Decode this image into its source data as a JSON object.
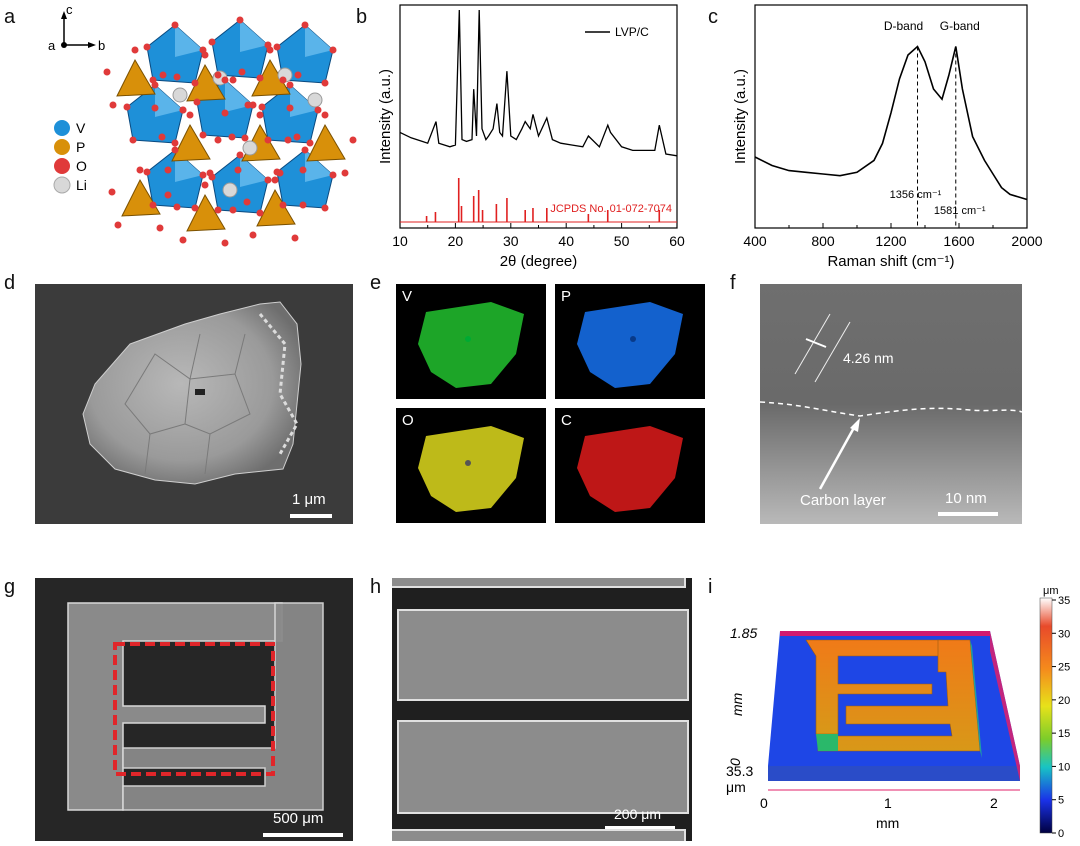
{
  "panels": {
    "a": {
      "label": "a",
      "axes": {
        "c": "c",
        "a": "a",
        "b": "b"
      },
      "legend": [
        {
          "symbol": "V",
          "color": "#1e90d8"
        },
        {
          "symbol": "P",
          "color": "#d8900a"
        },
        {
          "symbol": "O",
          "color": "#e03a3a"
        },
        {
          "symbol": "Li",
          "color": "#d8d8d8"
        }
      ]
    },
    "b": {
      "label": "b"
    },
    "c": {
      "label": "c"
    },
    "d": {
      "label": "d",
      "scale": "1 μm"
    },
    "e": {
      "label": "e",
      "elements": [
        "V",
        "P",
        "O",
        "C"
      ]
    },
    "f": {
      "label": "f",
      "spacing": "4.26 nm",
      "annotation": "Carbon layer",
      "scale": "10 nm"
    },
    "g": {
      "label": "g",
      "scale": "500 μm"
    },
    "h": {
      "label": "h",
      "scale": "200 μm"
    },
    "i": {
      "label": "i",
      "y_top": "1.85",
      "y_unit": "mm",
      "y_zero": "0",
      "z_val": "35.3",
      "z_unit": "μm",
      "x_ticks": [
        "0",
        "1",
        "2"
      ],
      "x_unit": "mm",
      "colorbar_unit": "μm",
      "colorbar_ticks": [
        "35",
        "30",
        "25",
        "20",
        "15",
        "10",
        "5",
        "0"
      ]
    }
  },
  "chart_data": [
    {
      "type": "line",
      "panel": "b",
      "xlabel": "2θ (degree)",
      "ylabel": "Intensity (a.u.)",
      "xlim": [
        10,
        60
      ],
      "x_ticks": [
        "10",
        "20",
        "30",
        "40",
        "50",
        "60"
      ],
      "series": [
        {
          "name": "LVP/C",
          "x": [
            10,
            12,
            14,
            15,
            16.5,
            17,
            18,
            19,
            20,
            20.7,
            21.2,
            22,
            23,
            23.3,
            23.8,
            24.3,
            24.8,
            25.5,
            26,
            26.8,
            27.5,
            28,
            28.5,
            29.3,
            30,
            31,
            32,
            32.6,
            33.5,
            34,
            35,
            36.5,
            37.5,
            39,
            41,
            43,
            44,
            46,
            47.5,
            48,
            50,
            52,
            54,
            56,
            56.8,
            58,
            60
          ],
          "y": [
            32,
            29,
            27,
            26,
            38,
            26,
            25,
            24,
            25,
            100,
            28,
            27,
            28,
            56,
            30,
            100,
            34,
            28,
            30,
            34,
            48,
            32,
            30,
            66,
            30,
            28,
            34,
            38,
            34,
            42,
            30,
            40,
            28,
            26,
            25,
            24,
            30,
            24,
            36,
            32,
            24,
            22,
            22,
            22,
            36,
            20,
            19
          ]
        }
      ],
      "reference": {
        "name": "JCPDS No. 01-072-7074",
        "x": [
          14.8,
          16.4,
          20.6,
          21.1,
          23.3,
          24.2,
          24.9,
          27.4,
          29.3,
          32.6,
          34,
          36.5,
          44,
          47.5,
          56.8
        ],
        "y": [
          3,
          5,
          22,
          8,
          13,
          16,
          6,
          9,
          12,
          6,
          7,
          7,
          4,
          6,
          6
        ]
      }
    },
    {
      "type": "line",
      "panel": "c",
      "xlabel": "Raman shift (cm⁻¹)",
      "ylabel": "Intensity (a.u.)",
      "xlim": [
        400,
        2000
      ],
      "x_ticks": [
        "400",
        "800",
        "1200",
        "1600",
        "2000"
      ],
      "annotations": [
        {
          "text": "D-band",
          "x": 1356
        },
        {
          "text": "G-band",
          "x": 1581
        },
        {
          "text": "1356 cm⁻¹",
          "x": 1356
        },
        {
          "text": "1581 cm⁻¹",
          "x": 1581
        }
      ],
      "series": [
        {
          "name": "",
          "x": [
            400,
            500,
            600,
            700,
            800,
            900,
            1000,
            1100,
            1150,
            1200,
            1250,
            1300,
            1356,
            1400,
            1450,
            1500,
            1540,
            1581,
            1620,
            1680,
            1750,
            1800,
            1850,
            1900,
            2000
          ],
          "y": [
            30,
            25,
            22,
            21,
            20,
            19,
            21,
            28,
            38,
            56,
            76,
            90,
            95,
            86,
            70,
            64,
            78,
            95,
            70,
            42,
            28,
            20,
            12,
            8,
            5
          ]
        }
      ]
    }
  ]
}
